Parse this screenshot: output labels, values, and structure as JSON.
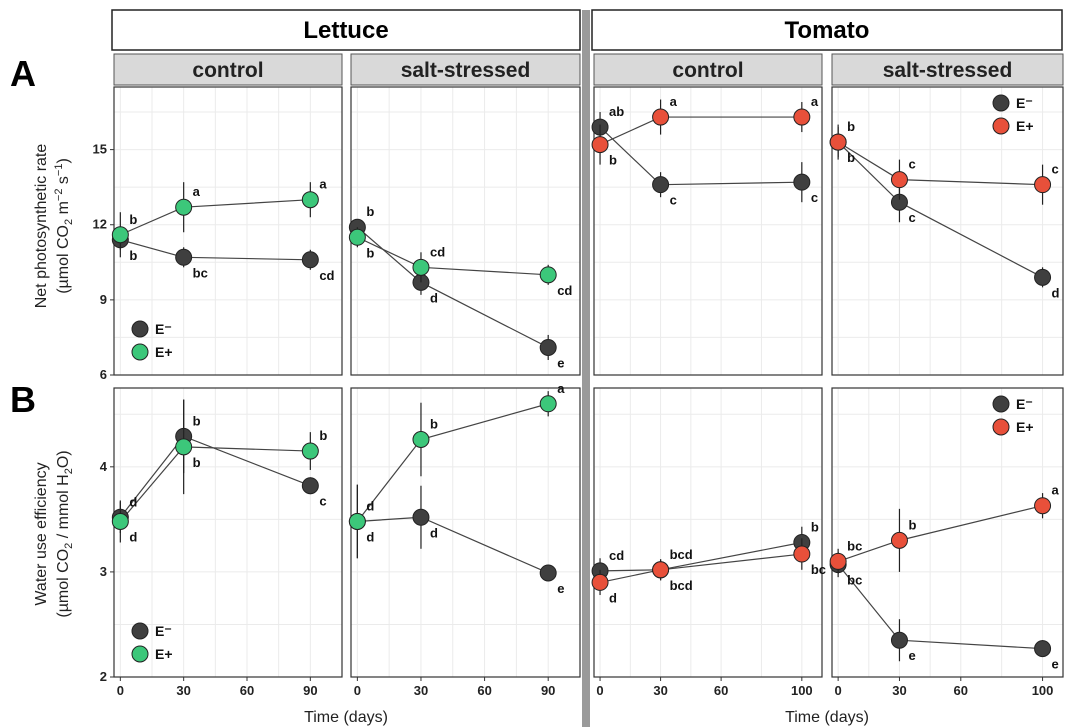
{
  "figure": {
    "crops": [
      "Lettuce",
      "Tomato"
    ],
    "conditions": [
      "control",
      "salt-stressed"
    ],
    "row_letters": [
      "A",
      "B"
    ],
    "x_label": "Time (days)",
    "legend": [
      {
        "key": "E-",
        "label": "E⁻"
      },
      {
        "key": "E+",
        "label": "E+"
      }
    ]
  },
  "colors": {
    "E-": "#3f3f3f",
    "lettuce_E+": "#3cc77a",
    "tomato_E+": "#e8503a",
    "strip": "#d9d9d9",
    "grid": "#ebebeb"
  },
  "chart_data": [
    {
      "type": "line",
      "row": "A",
      "crop": "Lettuce",
      "condition": "control",
      "ylabel": "Net photosynthetic rate (µmol CO2 m−2 s−1)",
      "xlabel": "Time (days)",
      "x_ticks": [
        0,
        30,
        60,
        90
      ],
      "y_ticks": [
        6,
        9,
        12,
        15
      ],
      "xlim": [
        -3,
        105
      ],
      "ylim": [
        6,
        17.5
      ],
      "legend": "bottom-left",
      "series": [
        {
          "name": "E-",
          "x": [
            0,
            30,
            90
          ],
          "y": [
            11.4,
            10.7,
            10.6
          ],
          "err": [
            0.4,
            0.4,
            0.4
          ],
          "letters": [
            "b",
            "bc",
            "cd"
          ],
          "letter_pos": [
            "below",
            "below",
            "below"
          ]
        },
        {
          "name": "E+",
          "x": [
            0,
            30,
            90
          ],
          "y": [
            11.6,
            12.7,
            13.0
          ],
          "err": [
            0.9,
            1.0,
            0.7
          ],
          "letters": [
            "b",
            "a",
            "a"
          ],
          "letter_pos": [
            "above",
            "above",
            "above"
          ]
        }
      ]
    },
    {
      "type": "line",
      "row": "A",
      "crop": "Lettuce",
      "condition": "salt-stressed",
      "xlabel": "Time (days)",
      "x_ticks": [
        0,
        30,
        60,
        90
      ],
      "xlim": [
        -3,
        105
      ],
      "ylim": [
        6,
        17.5
      ],
      "series": [
        {
          "name": "E-",
          "x": [
            0,
            30,
            90
          ],
          "y": [
            11.9,
            9.7,
            7.1
          ],
          "err": [
            0.3,
            0.5,
            0.5
          ],
          "letters": [
            "b",
            "d",
            "e"
          ],
          "letter_pos": [
            "above",
            "below",
            "below"
          ]
        },
        {
          "name": "E+",
          "x": [
            0,
            30,
            90
          ],
          "y": [
            11.5,
            10.3,
            10.0
          ],
          "err": [
            0.4,
            0.6,
            0.4
          ],
          "letters": [
            "b",
            "cd",
            "cd"
          ],
          "letter_pos": [
            "below",
            "above",
            "below"
          ]
        }
      ]
    },
    {
      "type": "line",
      "row": "A",
      "crop": "Tomato",
      "condition": "control",
      "xlabel": "Time (days)",
      "x_ticks": [
        0,
        30,
        60,
        100
      ],
      "xlim": [
        -3,
        110
      ],
      "ylim": [
        6,
        17.5
      ],
      "series": [
        {
          "name": "E-",
          "x": [
            0,
            30,
            100
          ],
          "y": [
            15.9,
            13.6,
            13.7
          ],
          "err": [
            0.6,
            0.5,
            0.8
          ],
          "letters": [
            "ab",
            "c",
            "c"
          ],
          "letter_pos": [
            "above",
            "below",
            "below"
          ]
        },
        {
          "name": "E+",
          "x": [
            0,
            30,
            100
          ],
          "y": [
            15.2,
            16.3,
            16.3
          ],
          "err": [
            0.8,
            0.7,
            0.6
          ],
          "letters": [
            "b",
            "a",
            "a"
          ],
          "letter_pos": [
            "below",
            "above",
            "above"
          ]
        }
      ]
    },
    {
      "type": "line",
      "row": "A",
      "crop": "Tomato",
      "condition": "salt-stressed",
      "xlabel": "Time (days)",
      "x_ticks": [
        0,
        30,
        60,
        100
      ],
      "xlim": [
        -3,
        110
      ],
      "ylim": [
        6,
        17.5
      ],
      "legend": "top-right",
      "series": [
        {
          "name": "E-",
          "x": [
            0,
            30,
            100
          ],
          "y": [
            15.3,
            12.9,
            9.9
          ],
          "err": [
            0.6,
            0.8,
            0.4
          ],
          "letters": [
            "b",
            "c",
            "d"
          ],
          "letter_pos": [
            "below",
            "below",
            "below"
          ]
        },
        {
          "name": "E+",
          "x": [
            0,
            30,
            100
          ],
          "y": [
            15.3,
            13.8,
            13.6
          ],
          "err": [
            0.7,
            0.8,
            0.8
          ],
          "letters": [
            "b",
            "c",
            "c"
          ],
          "letter_pos": [
            "above",
            "above",
            "above"
          ]
        }
      ]
    },
    {
      "type": "line",
      "row": "B",
      "crop": "Lettuce",
      "condition": "control",
      "ylabel": "Water use efficiency (µmol CO2 / mmol H2O)",
      "xlabel": "Time (days)",
      "x_ticks": [
        0,
        30,
        60,
        90
      ],
      "y_ticks": [
        2,
        3,
        4
      ],
      "xlim": [
        -3,
        105
      ],
      "ylim": [
        2,
        4.75
      ],
      "legend": "bottom-left",
      "series": [
        {
          "name": "E-",
          "x": [
            0,
            30,
            90
          ],
          "y": [
            3.52,
            4.29,
            3.82
          ],
          "err": [
            0.15,
            0.35,
            0.08
          ],
          "letters": [
            "d",
            "b",
            "c"
          ],
          "letter_pos": [
            "above",
            "above",
            "below"
          ]
        },
        {
          "name": "E+",
          "x": [
            0,
            30,
            90
          ],
          "y": [
            3.48,
            4.19,
            4.15
          ],
          "err": [
            0.2,
            0.45,
            0.18
          ],
          "letters": [
            "d",
            "b",
            "b"
          ],
          "letter_pos": [
            "below",
            "below",
            "above"
          ]
        }
      ]
    },
    {
      "type": "line",
      "row": "B",
      "crop": "Lettuce",
      "condition": "salt-stressed",
      "xlabel": "Time (days)",
      "x_ticks": [
        0,
        30,
        60,
        90
      ],
      "xlim": [
        -3,
        105
      ],
      "ylim": [
        2,
        4.75
      ],
      "series": [
        {
          "name": "E-",
          "x": [
            0,
            30,
            90
          ],
          "y": [
            3.48,
            3.52,
            2.99
          ],
          "err": [
            0.35,
            0.3,
            0.08
          ],
          "letters": [
            "d",
            "d",
            "e"
          ],
          "letter_pos": [
            "above",
            "below",
            "below"
          ]
        },
        {
          "name": "E+",
          "x": [
            0,
            30,
            90
          ],
          "y": [
            3.48,
            4.26,
            4.6
          ],
          "err": [
            0.35,
            0.35,
            0.12
          ],
          "letters": [
            "d",
            "b",
            "a"
          ],
          "letter_pos": [
            "below",
            "above",
            "above"
          ]
        }
      ]
    },
    {
      "type": "line",
      "row": "B",
      "crop": "Tomato",
      "condition": "control",
      "xlabel": "Time (days)",
      "x_ticks": [
        0,
        30,
        60,
        100
      ],
      "xlim": [
        -3,
        110
      ],
      "ylim": [
        2,
        4.75
      ],
      "series": [
        {
          "name": "E-",
          "x": [
            0,
            30,
            100
          ],
          "y": [
            3.01,
            3.02,
            3.28
          ],
          "err": [
            0.12,
            0.1,
            0.15
          ],
          "letters": [
            "cd",
            "bcd",
            "b"
          ],
          "letter_pos": [
            "above",
            "above",
            "above"
          ]
        },
        {
          "name": "E+",
          "x": [
            0,
            30,
            100
          ],
          "y": [
            2.9,
            3.02,
            3.17
          ],
          "err": [
            0.12,
            0.1,
            0.15
          ],
          "letters": [
            "d",
            "bcd",
            "bc"
          ],
          "letter_pos": [
            "below",
            "below",
            "below"
          ]
        }
      ]
    },
    {
      "type": "line",
      "row": "B",
      "crop": "Tomato",
      "condition": "salt-stressed",
      "xlabel": "Time (days)",
      "x_ticks": [
        0,
        30,
        60,
        100
      ],
      "xlim": [
        -3,
        110
      ],
      "ylim": [
        2,
        4.75
      ],
      "legend": "top-right",
      "series": [
        {
          "name": "E-",
          "x": [
            0,
            30,
            100
          ],
          "y": [
            3.07,
            2.35,
            2.27
          ],
          "err": [
            0.12,
            0.2,
            0.08
          ],
          "letters": [
            "bc",
            "e",
            "e"
          ],
          "letter_pos": [
            "below",
            "below",
            "below"
          ]
        },
        {
          "name": "E+",
          "x": [
            0,
            30,
            100
          ],
          "y": [
            3.1,
            3.3,
            3.63
          ],
          "err": [
            0.12,
            0.3,
            0.12
          ],
          "letters": [
            "bc",
            "b",
            "a"
          ],
          "letter_pos": [
            "above",
            "above",
            "above"
          ]
        }
      ]
    }
  ]
}
